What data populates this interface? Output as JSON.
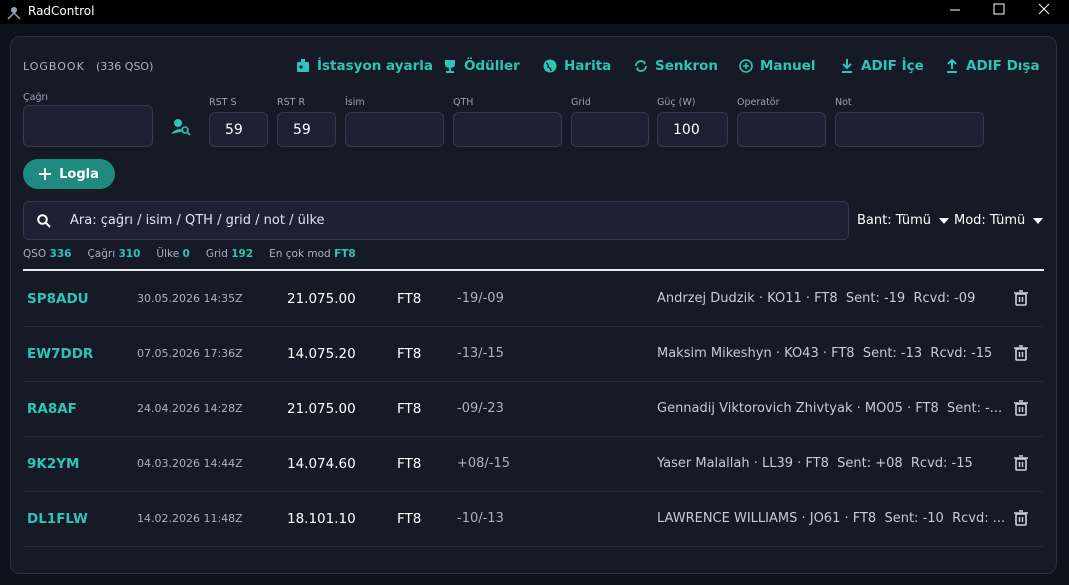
{
  "window": {
    "title": "RadControl"
  },
  "header": {
    "title": "LOGBOOK",
    "count": "(336 QSO)"
  },
  "toolbar": [
    "İstasyon ayarla",
    "Ödüller",
    "Harita",
    "Senkron",
    "Manuel",
    "ADIF İçe",
    "ADIF Dışa"
  ],
  "form": {
    "fields": [
      {
        "label": "Çağrı"
      },
      {
        "label": "RST S",
        "value": "59"
      },
      {
        "label": "RST R",
        "value": "59"
      },
      {
        "label": "İsim"
      },
      {
        "label": "QTH"
      },
      {
        "label": "Grid"
      },
      {
        "label": "Güç (W)",
        "value": "100"
      },
      {
        "label": "Operatör"
      },
      {
        "label": "Not"
      }
    ],
    "submit": "Logla"
  },
  "search": {
    "placeholder": "Ara: çağrı / isim / QTH / grid / not / ülke"
  },
  "filters": [
    "Bant: Tümü",
    "Mod: Tümü"
  ],
  "stats": [
    {
      "label": "QSO",
      "value": "336"
    },
    {
      "label": "Çağrı",
      "value": "310"
    },
    {
      "label": "Ülke",
      "value": "0"
    },
    {
      "label": "Grid",
      "value": "192"
    },
    {
      "label": "En çok mod",
      "value": "FT8"
    }
  ],
  "rows": [
    {
      "call": "SP8ADU",
      "datetime": "30.05.2026 14:35Z",
      "freq": "21.075.00",
      "mode": "FT8",
      "rst": "-19/-09",
      "details": "Andrzej Dudzik · KO11 · FT8  Sent: -19  Rcvd: -09"
    },
    {
      "call": "EW7DDR",
      "datetime": "07.05.2026 17:36Z",
      "freq": "14.075.20",
      "mode": "FT8",
      "rst": "-13/-15",
      "details": "Maksim Mikeshyn · KO43 · FT8  Sent: -13  Rcvd: -15"
    },
    {
      "call": "RA8AF",
      "datetime": "24.04.2026 14:28Z",
      "freq": "21.075.00",
      "mode": "FT8",
      "rst": "-09/-23",
      "details": "Gennadij Viktorovich Zhivtyak · MO05 · FT8  Sent: -..."
    },
    {
      "call": "9K2YM",
      "datetime": "04.03.2026 14:44Z",
      "freq": "14.074.60",
      "mode": "FT8",
      "rst": "+08/-15",
      "details": "Yaser Malallah · LL39 · FT8  Sent: +08  Rcvd: -15"
    },
    {
      "call": "DL1FLW",
      "datetime": "14.02.2026 11:48Z",
      "freq": "18.101.10",
      "mode": "FT8",
      "rst": "-10/-13",
      "details": "LAWRENCE WILLIAMS · JO61 · FT8  Sent: -10  Rcvd: ..."
    }
  ]
}
